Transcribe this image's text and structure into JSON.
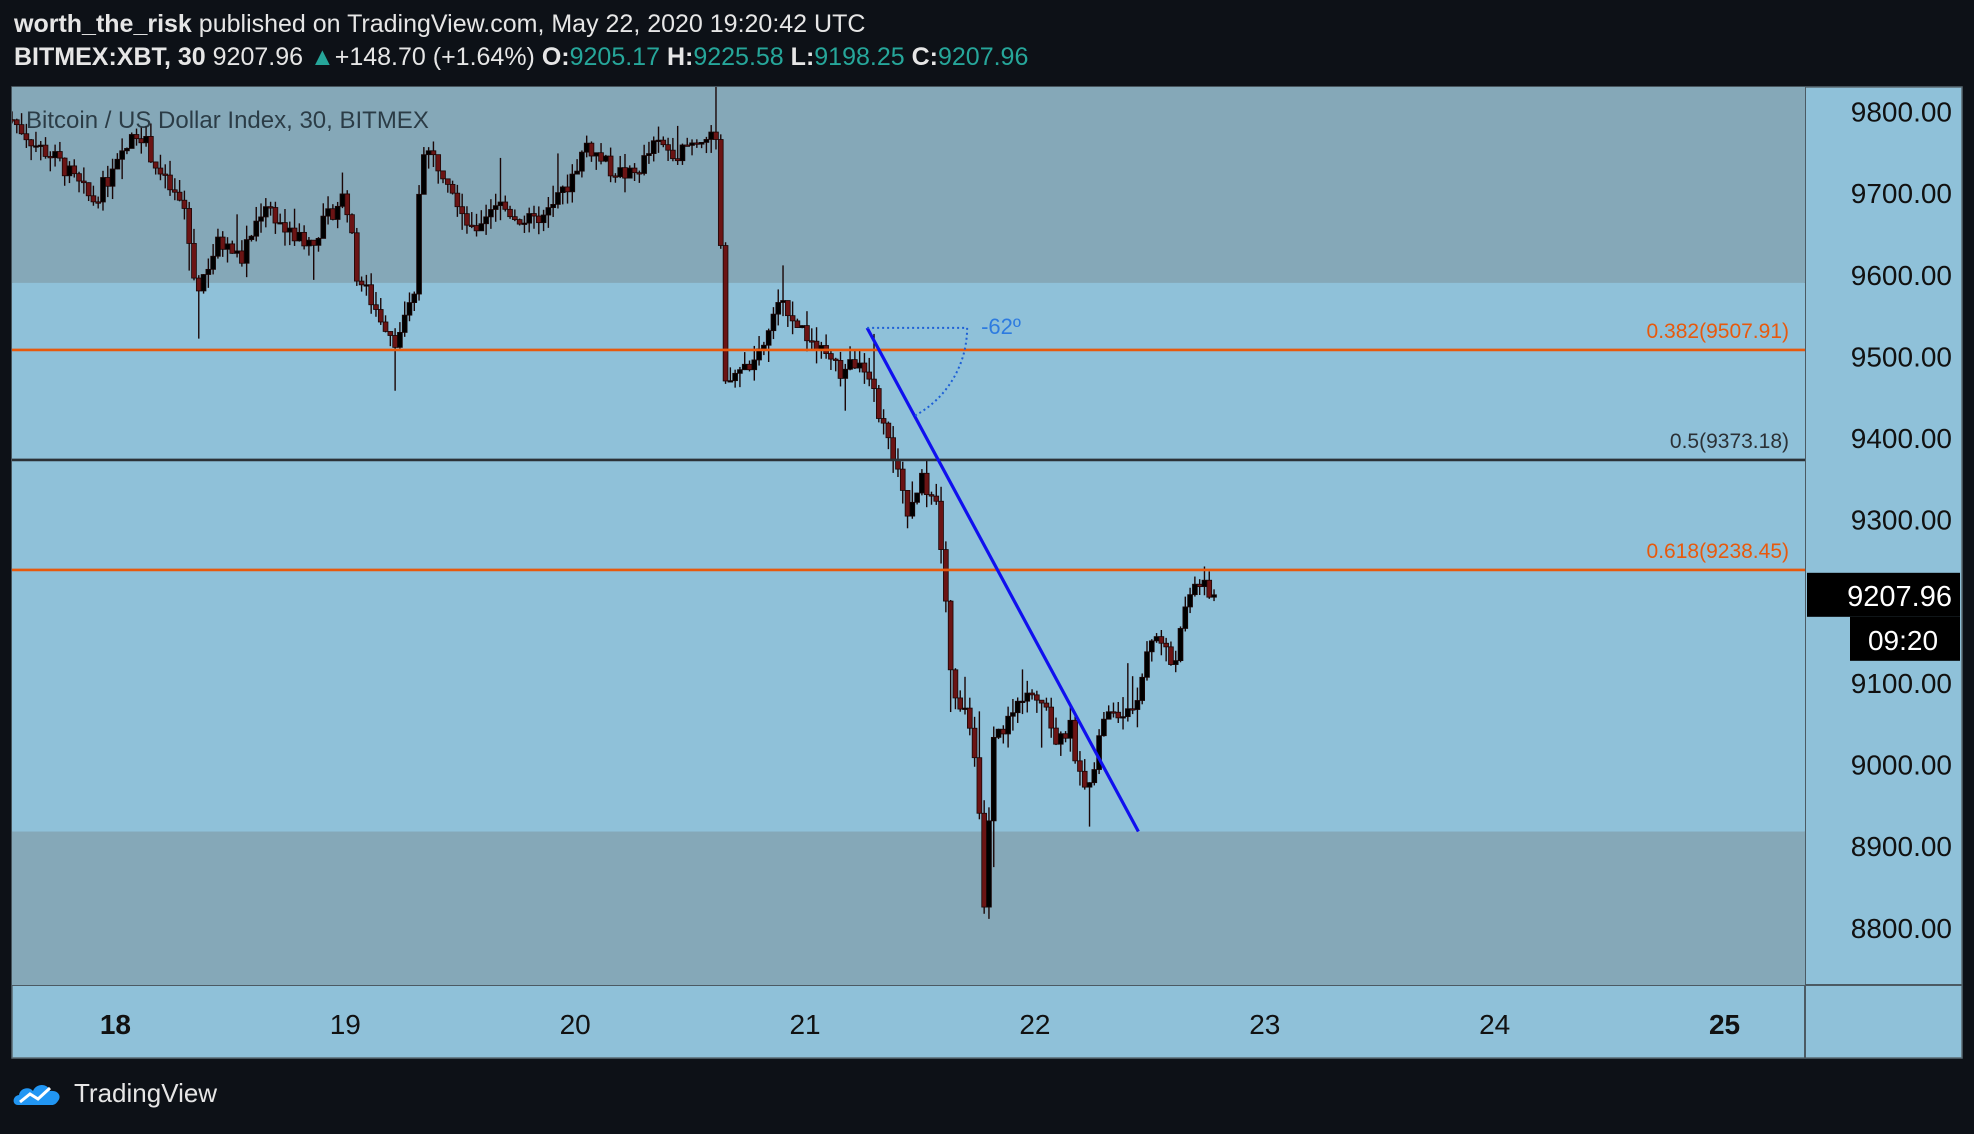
{
  "header": {
    "publisher": "worth_the_risk",
    "published_text": "published on TradingView.com, May 22, 2020 19:20:42 UTC",
    "symbol": "BITMEX:XBT, 30",
    "last": "9207.96",
    "change_arrow": "▲",
    "change": "+148.70 (+1.64%)",
    "o_label": "O:",
    "o": "9205.17",
    "h_label": "H:",
    "h": "9225.58",
    "l_label": "L:",
    "l": "9198.25",
    "c_label": "C:",
    "c": "9207.96"
  },
  "footer": {
    "brand": "TradingView",
    "logo_icon": "tradingview-cloud-logo-icon"
  },
  "chart_data": {
    "type": "candlestick",
    "title": "Bitcoin / US Dollar Index, 30, BITMEX",
    "ylim": [
      8730,
      9830
    ],
    "y_ticks": [
      "9800.00",
      "9700.00",
      "9600.00",
      "9500.00",
      "9400.00",
      "9300.00",
      "9100.00",
      "9000.00",
      "8900.00",
      "8800.00"
    ],
    "x_ticks": [
      {
        "label": "18",
        "day": 18,
        "bold": true
      },
      {
        "label": "19",
        "day": 19,
        "bold": false
      },
      {
        "label": "20",
        "day": 20,
        "bold": false
      },
      {
        "label": "21",
        "day": 21,
        "bold": false
      },
      {
        "label": "22",
        "day": 22,
        "bold": false
      },
      {
        "label": "23",
        "day": 23,
        "bold": false
      },
      {
        "label": "24",
        "day": 24,
        "bold": false
      },
      {
        "label": "25",
        "day": 25,
        "bold": true
      }
    ],
    "xlim_days": [
      17.55,
      25.35
    ],
    "last_price": "9207.96",
    "countdown": "09:20",
    "zones": [
      {
        "from": 9590,
        "to": 9830,
        "color": "#85a8b8"
      },
      {
        "from": 9590,
        "to": 8918,
        "color": "#8fc1d9"
      },
      {
        "from": 8918,
        "to": 8730,
        "color": "#85a8b8"
      }
    ],
    "fib_levels": [
      {
        "label": "0.382(9507.91)",
        "price": 9507.91,
        "color": "#e8590c"
      },
      {
        "label": "0.5(9373.18)",
        "price": 9373.18,
        "color": "#2b3136"
      },
      {
        "label": "0.618(9238.45)",
        "price": 9238.45,
        "color": "#e8590c"
      }
    ],
    "trendline": {
      "start": {
        "day": 21.27,
        "price": 9535
      },
      "end": {
        "day": 22.45,
        "price": 8918
      },
      "color": "#1010ee"
    },
    "angle_label": "-62º",
    "price_path": [
      [
        17.55,
        9790
      ],
      [
        17.65,
        9760
      ],
      [
        17.75,
        9740
      ],
      [
        17.9,
        9690
      ],
      [
        18.0,
        9730
      ],
      [
        18.1,
        9780
      ],
      [
        18.2,
        9720
      ],
      [
        18.3,
        9680
      ],
      [
        18.35,
        9580
      ],
      [
        18.45,
        9640
      ],
      [
        18.55,
        9620
      ],
      [
        18.65,
        9690
      ],
      [
        18.75,
        9650
      ],
      [
        18.85,
        9640
      ],
      [
        18.95,
        9680
      ],
      [
        19.0,
        9700
      ],
      [
        19.05,
        9600
      ],
      [
        19.15,
        9550
      ],
      [
        19.22,
        9520
      ],
      [
        19.3,
        9570
      ],
      [
        19.33,
        9760
      ],
      [
        19.45,
        9720
      ],
      [
        19.55,
        9650
      ],
      [
        19.65,
        9690
      ],
      [
        19.75,
        9670
      ],
      [
        19.85,
        9660
      ],
      [
        19.95,
        9700
      ],
      [
        20.05,
        9760
      ],
      [
        20.15,
        9730
      ],
      [
        20.25,
        9720
      ],
      [
        20.35,
        9760
      ],
      [
        20.45,
        9750
      ],
      [
        20.55,
        9770
      ],
      [
        20.62,
        9760
      ],
      [
        20.65,
        9460
      ],
      [
        20.7,
        9480
      ],
      [
        20.8,
        9500
      ],
      [
        20.9,
        9570
      ],
      [
        20.97,
        9540
      ],
      [
        21.05,
        9510
      ],
      [
        21.15,
        9480
      ],
      [
        21.25,
        9500
      ],
      [
        21.3,
        9450
      ],
      [
        21.38,
        9380
      ],
      [
        21.45,
        9300
      ],
      [
        21.5,
        9350
      ],
      [
        21.57,
        9320
      ],
      [
        21.6,
        9250
      ],
      [
        21.63,
        9120
      ],
      [
        21.67,
        9070
      ],
      [
        21.72,
        9050
      ],
      [
        21.75,
        8980
      ],
      [
        21.78,
        8820
      ],
      [
        21.82,
        9030
      ],
      [
        21.9,
        9060
      ],
      [
        21.97,
        9100
      ],
      [
        22.05,
        9070
      ],
      [
        22.1,
        9020
      ],
      [
        22.15,
        9050
      ],
      [
        22.2,
        8980
      ],
      [
        22.25,
        8990
      ],
      [
        22.3,
        9060
      ],
      [
        22.4,
        9060
      ],
      [
        22.45,
        9080
      ],
      [
        22.5,
        9160
      ],
      [
        22.55,
        9150
      ],
      [
        22.6,
        9120
      ],
      [
        22.65,
        9180
      ],
      [
        22.7,
        9230
      ],
      [
        22.75,
        9210
      ],
      [
        22.78,
        9207.96
      ]
    ]
  }
}
